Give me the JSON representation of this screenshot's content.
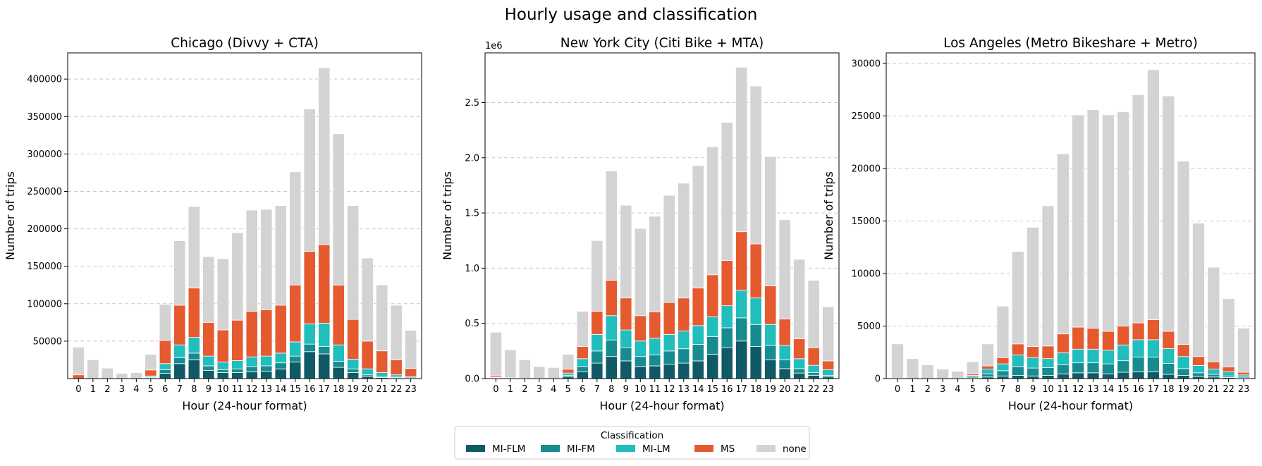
{
  "figure_title": "Hourly usage and classification",
  "legend": {
    "title": "Classification",
    "items": [
      {
        "label": "MI-FLM",
        "color": "#0f5a66"
      },
      {
        "label": "MI-FM",
        "color": "#178c90"
      },
      {
        "label": "MI-LM",
        "color": "#22bdbd"
      },
      {
        "label": "MS",
        "color": "#e55a2f"
      },
      {
        "label": "none",
        "color": "#d3d3d3"
      }
    ]
  },
  "chart_data": [
    {
      "type": "bar",
      "stacked": true,
      "title": "Chicago (Divvy + CTA)",
      "xlabel": "Hour (24-hour format)",
      "ylabel": "Number of trips",
      "categories": [
        "0",
        "1",
        "2",
        "3",
        "4",
        "5",
        "6",
        "7",
        "8",
        "9",
        "10",
        "11",
        "12",
        "13",
        "14",
        "15",
        "16",
        "17",
        "18",
        "19",
        "20",
        "21",
        "22",
        "23"
      ],
      "ylim": [
        0,
        435000
      ],
      "yticks": [
        50000,
        100000,
        150000,
        200000,
        250000,
        300000,
        350000,
        400000
      ],
      "ytick_labels": [
        "50000",
        "100000",
        "150000",
        "200000",
        "250000",
        "300000",
        "350000",
        "400000"
      ],
      "offset_text": "",
      "grid": "y-dashed",
      "series": [
        {
          "name": "MI-FLM",
          "values": [
            0,
            0,
            0,
            0,
            0,
            1000,
            7000,
            20000,
            25000,
            11000,
            8000,
            8000,
            9000,
            10000,
            13000,
            22000,
            36000,
            33000,
            15000,
            8000,
            3000,
            1500,
            1000,
            500
          ]
        },
        {
          "name": "MI-FM",
          "values": [
            0,
            0,
            0,
            0,
            0,
            1000,
            5000,
            8000,
            9000,
            6000,
            4000,
            5000,
            7000,
            7000,
            8000,
            8000,
            10000,
            10000,
            8000,
            5000,
            2000,
            1500,
            1000,
            500
          ]
        },
        {
          "name": "MI-LM",
          "values": [
            0,
            0,
            0,
            0,
            0,
            1500,
            8000,
            17000,
            21000,
            13000,
            10000,
            11000,
            13000,
            13000,
            13000,
            19000,
            27000,
            31000,
            22000,
            13000,
            8000,
            5000,
            3000,
            1500
          ]
        },
        {
          "name": "MS",
          "values": [
            5000,
            0,
            0,
            0,
            0,
            8000,
            31000,
            53000,
            66000,
            45000,
            43000,
            54000,
            61000,
            62000,
            64000,
            76000,
            97000,
            105000,
            80000,
            53000,
            37000,
            29000,
            20000,
            11000
          ]
        },
        {
          "name": "none",
          "values": [
            37000,
            25000,
            14000,
            7000,
            8000,
            21000,
            48000,
            86000,
            109000,
            88000,
            95000,
            117000,
            135000,
            134000,
            133000,
            151000,
            190000,
            236000,
            202000,
            152000,
            111000,
            88000,
            73000,
            51000
          ]
        }
      ]
    },
    {
      "type": "bar",
      "stacked": true,
      "title": "New York City (Citi Bike + MTA)",
      "xlabel": "Hour (24-hour format)",
      "ylabel": "Number of trips",
      "categories": [
        "0",
        "1",
        "2",
        "3",
        "4",
        "5",
        "6",
        "7",
        "8",
        "9",
        "10",
        "11",
        "12",
        "13",
        "14",
        "15",
        "16",
        "17",
        "18",
        "19",
        "20",
        "21",
        "22",
        "23"
      ],
      "ylim": [
        0,
        2950000
      ],
      "yticks": [
        0,
        500000,
        1000000,
        1500000,
        2000000,
        2500000
      ],
      "ytick_labels": [
        "0.0",
        "0.5",
        "1.0",
        "1.5",
        "2.0",
        "2.5"
      ],
      "offset_text": "1e6",
      "grid": "y-dashed",
      "series": [
        {
          "name": "MI-FLM",
          "values": [
            5000,
            2000,
            1000,
            500,
            500,
            15000,
            60000,
            140000,
            200000,
            160000,
            110000,
            115000,
            130000,
            140000,
            160000,
            220000,
            280000,
            340000,
            290000,
            170000,
            90000,
            50000,
            30000,
            15000
          ]
        },
        {
          "name": "MI-FM",
          "values": [
            3000,
            1000,
            500,
            500,
            500,
            15000,
            50000,
            110000,
            150000,
            120000,
            90000,
            100000,
            120000,
            130000,
            150000,
            160000,
            180000,
            210000,
            200000,
            130000,
            80000,
            40000,
            25000,
            15000
          ]
        },
        {
          "name": "MI-LM",
          "values": [
            4000,
            1000,
            500,
            500,
            500,
            20000,
            70000,
            150000,
            220000,
            160000,
            140000,
            150000,
            150000,
            160000,
            170000,
            180000,
            200000,
            250000,
            240000,
            190000,
            130000,
            90000,
            65000,
            50000
          ]
        },
        {
          "name": "MS",
          "values": [
            13000,
            3000,
            2000,
            1500,
            1500,
            35000,
            110000,
            210000,
            320000,
            290000,
            230000,
            240000,
            290000,
            300000,
            340000,
            380000,
            410000,
            530000,
            490000,
            350000,
            240000,
            180000,
            160000,
            80000
          ]
        },
        {
          "name": "none",
          "values": [
            395000,
            253000,
            166000,
            107000,
            97000,
            135000,
            320000,
            640000,
            990000,
            840000,
            790000,
            865000,
            970000,
            1040000,
            1110000,
            1160000,
            1250000,
            1490000,
            1430000,
            1170000,
            900000,
            720000,
            610000,
            490000
          ]
        }
      ]
    },
    {
      "type": "bar",
      "stacked": true,
      "title": "Los Angeles (Metro Bikeshare + Metro)",
      "xlabel": "Hour (24-hour format)",
      "ylabel": "Number of trips",
      "categories": [
        "0",
        "1",
        "2",
        "3",
        "4",
        "5",
        "6",
        "7",
        "8",
        "9",
        "10",
        "11",
        "12",
        "13",
        "14",
        "15",
        "16",
        "17",
        "18",
        "19",
        "20",
        "21",
        "22",
        "23"
      ],
      "ylim": [
        0,
        31000
      ],
      "yticks": [
        0,
        5000,
        10000,
        15000,
        20000,
        25000,
        30000
      ],
      "ytick_labels": [
        "0",
        "5000",
        "10000",
        "15000",
        "20000",
        "25000",
        "30000"
      ],
      "offset_text": "",
      "grid": "y-dashed",
      "series": [
        {
          "name": "MI-FLM",
          "values": [
            10,
            5,
            5,
            5,
            5,
            50,
            150,
            250,
            300,
            250,
            300,
            450,
            550,
            550,
            450,
            600,
            650,
            650,
            400,
            300,
            200,
            150,
            100,
            50
          ]
        },
        {
          "name": "MI-FM",
          "values": [
            10,
            5,
            5,
            5,
            5,
            100,
            300,
            500,
            850,
            750,
            750,
            850,
            950,
            950,
            950,
            1100,
            1400,
            1400,
            1050,
            650,
            350,
            250,
            150,
            100
          ]
        },
        {
          "name": "MI-LM",
          "values": [
            10,
            5,
            5,
            5,
            5,
            150,
            450,
            650,
            1100,
            1000,
            850,
            1150,
            1300,
            1300,
            1300,
            1500,
            1650,
            1650,
            1400,
            1150,
            700,
            500,
            400,
            200
          ]
        },
        {
          "name": "MS",
          "values": [
            20,
            10,
            10,
            10,
            10,
            150,
            300,
            600,
            1050,
            1050,
            1200,
            1800,
            2100,
            2000,
            1800,
            1800,
            1600,
            1900,
            1650,
            1150,
            850,
            700,
            450,
            250
          ]
        },
        {
          "name": "none",
          "values": [
            3250,
            1875,
            1275,
            875,
            675,
            1150,
            2100,
            4900,
            8800,
            11350,
            13350,
            17150,
            20200,
            20800,
            20600,
            20400,
            21700,
            23800,
            22400,
            17450,
            12700,
            9000,
            6500,
            4200
          ]
        }
      ]
    }
  ]
}
